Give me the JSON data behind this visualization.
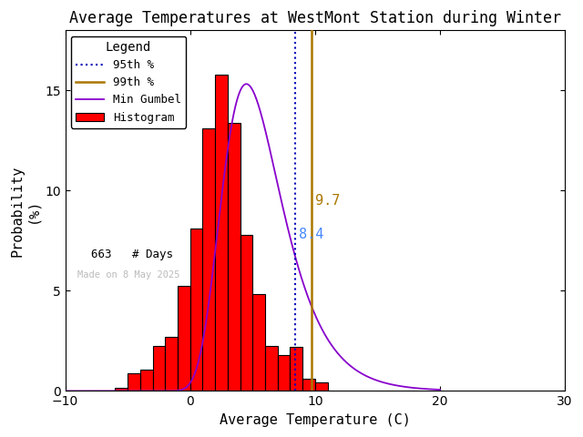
{
  "title": "Average Temperatures at WestMont Station during Winter",
  "xlabel": "Average Temperature (C)",
  "ylabel": "Probability\n(%)",
  "xlim": [
    -10,
    30
  ],
  "ylim": [
    0,
    18
  ],
  "yticks": [
    0,
    5,
    10,
    15
  ],
  "xticks": [
    -10,
    0,
    10,
    20,
    30
  ],
  "bar_lefts": [
    -8,
    -7,
    -6,
    -5,
    -4,
    -3,
    -2,
    -1,
    0,
    1,
    2,
    3,
    4,
    5,
    6,
    7,
    8,
    9,
    10,
    11,
    12,
    13
  ],
  "bar_heights": [
    0.0,
    0.0,
    0.15,
    0.9,
    1.05,
    2.25,
    2.7,
    5.25,
    8.1,
    13.1,
    15.8,
    13.4,
    7.8,
    4.85,
    2.25,
    1.8,
    2.2,
    0.6,
    0.45,
    0.0,
    0.0,
    0.0
  ],
  "bar_color": "#ff0000",
  "bar_edgecolor": "#000000",
  "bar_linewidth": 0.8,
  "gumbel_color": "#8800cc",
  "gumbel_lw": 1.3,
  "gumbel_mu": 4.5,
  "gumbel_beta": 2.4,
  "pct95_val": 8.4,
  "pct99_val": 9.7,
  "pct95_color": "#aaaaff",
  "pct95_dotcolor": "#0000bb",
  "pct99_color": "#aa7700",
  "pct95_label": "8.4",
  "pct99_label": "9.7",
  "pct95_label_color": "#4488ff",
  "pct99_label_color": "#aa7700",
  "n_days": 663,
  "made_on": "Made on 8 May 2025",
  "legend_title": "Legend",
  "background_color": "#ffffff"
}
